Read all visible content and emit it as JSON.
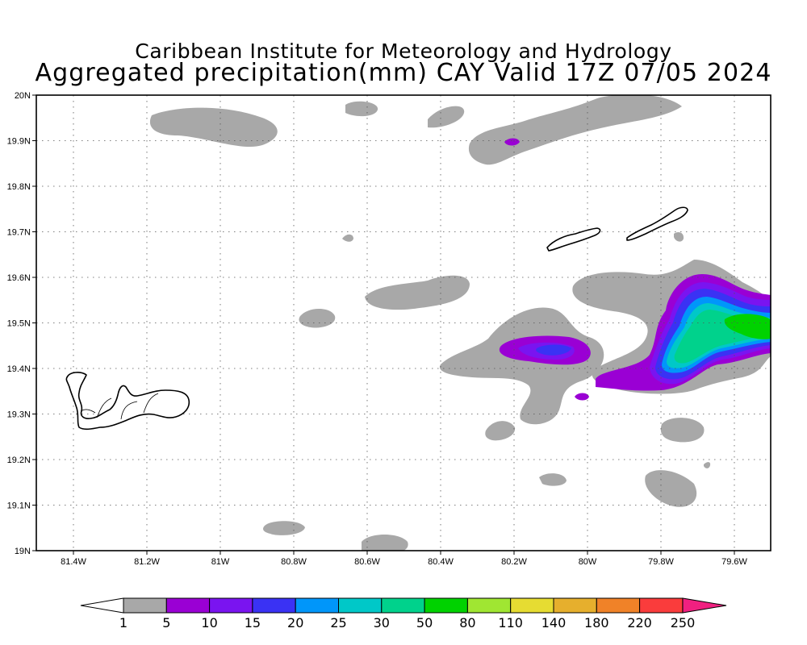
{
  "title_line1": "Caribbean Institute for Meteorology and Hydrology",
  "title_line2": "Aggregated precipitation(mm) CAY Valid 17Z 07/05 2024",
  "map": {
    "lon_range": [
      -81.5,
      -79.5
    ],
    "lat_range": [
      19.0,
      20.0
    ],
    "grid": "dotted",
    "lon_ticks": [
      "81.4W",
      "81.2W",
      "81W",
      "80.8W",
      "80.6W",
      "80.4W",
      "80.2W",
      "80W",
      "79.8W",
      "79.6W"
    ],
    "lat_ticks": [
      "19N",
      "19.1N",
      "19.2N",
      "19.3N",
      "19.4N",
      "19.5N",
      "19.6N",
      "19.7N",
      "19.8N",
      "19.9N",
      "20N"
    ],
    "islands": [
      "Grand Cayman",
      "Little Cayman",
      "Cayman Brac"
    ],
    "max_precip_center": {
      "lon": -79.6,
      "lat": 19.5,
      "category": "50-80"
    },
    "secondary_max_center": {
      "lon": -80.08,
      "lat": 19.44,
      "category": "15-20"
    }
  },
  "colorbar": {
    "labels": [
      "1",
      "5",
      "10",
      "15",
      "20",
      "25",
      "30",
      "50",
      "80",
      "110",
      "140",
      "180",
      "220",
      "250"
    ],
    "colors": [
      "#a8a8a8",
      "#9a00d4",
      "#7a14f0",
      "#3a32f4",
      "#0096fa",
      "#00c8c8",
      "#00d28c",
      "#00d200",
      "#a0e632",
      "#e6dc32",
      "#e6af2d",
      "#f08228",
      "#fa3c3c",
      "#f02080"
    ],
    "under_color": "#ffffff",
    "over_color": "#f02080"
  }
}
